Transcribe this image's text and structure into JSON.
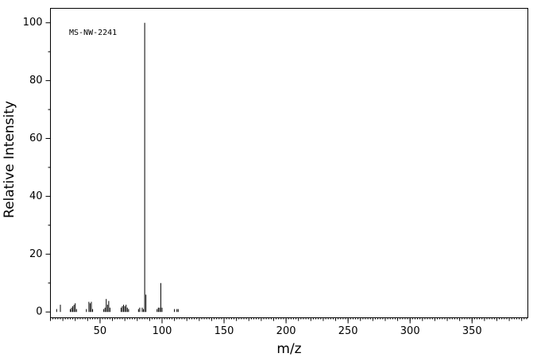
{
  "chart_data": {
    "type": "spectrum",
    "annotation": "MS-NW-2241",
    "x_label": "m/z",
    "y_label": "Relative Intensity",
    "color": "#000000",
    "x": [
      15,
      18,
      26,
      27,
      28,
      29,
      30,
      31,
      39,
      41,
      42,
      43,
      44,
      53,
      54,
      55,
      56,
      57,
      58,
      67,
      68,
      69,
      70,
      71,
      72,
      73,
      81,
      82,
      84,
      85,
      86,
      87,
      96,
      97,
      98,
      99,
      100,
      110,
      112,
      113
    ],
    "values": [
      1,
      2.5,
      1,
      1.5,
      2,
      2.5,
      3,
      1,
      1,
      3.5,
      3,
      3.5,
      1,
      1,
      1.5,
      4.5,
      2.5,
      3.8,
      1.5,
      1.5,
      2,
      2.5,
      2,
      2.5,
      1.5,
      1,
      1,
      1.5,
      1.5,
      1,
      100,
      6,
      1,
      1.5,
      1.5,
      10,
      1.5,
      1,
      1,
      1
    ],
    "xlim": [
      10,
      395
    ],
    "ylim": [
      -2,
      105
    ],
    "xticks": [
      50,
      100,
      150,
      200,
      250,
      300,
      350
    ],
    "yticks": [
      0,
      20,
      40,
      60,
      80,
      100
    ]
  }
}
